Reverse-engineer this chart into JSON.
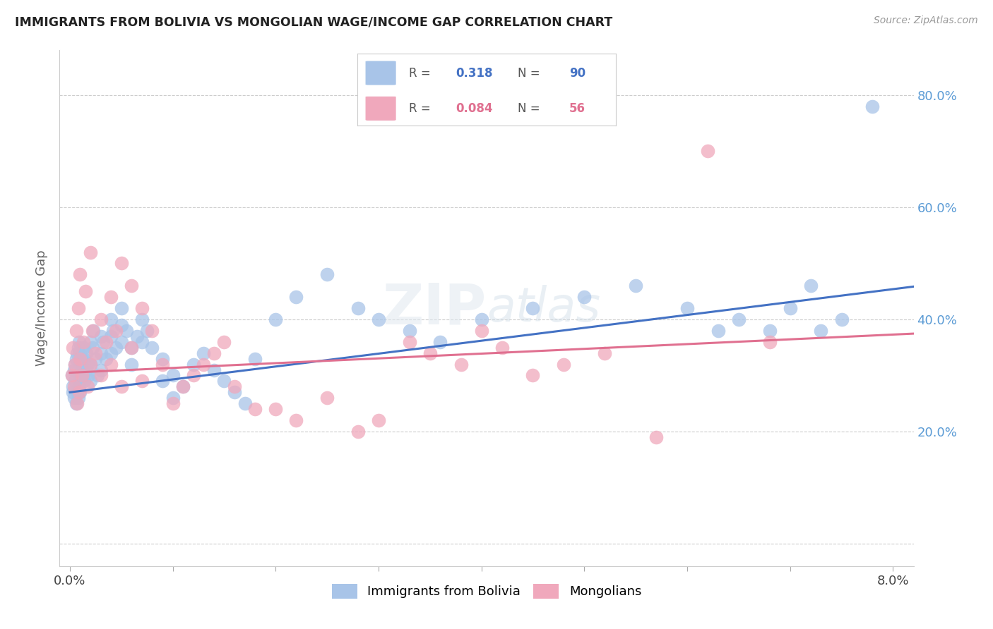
{
  "title": "IMMIGRANTS FROM BOLIVIA VS MONGOLIAN WAGE/INCOME GAP CORRELATION CHART",
  "source": "Source: ZipAtlas.com",
  "ylabel": "Wage/Income Gap",
  "xlim": [
    -0.001,
    0.082
  ],
  "ylim": [
    -0.04,
    0.88
  ],
  "legend1_label": "Immigrants from Bolivia",
  "legend2_label": "Mongolians",
  "r1": "0.318",
  "n1": "90",
  "r2": "0.084",
  "n2": "56",
  "color_blue": "#a8c4e8",
  "color_pink": "#f0a8bc",
  "color_blue_line": "#4472c4",
  "color_pink_line": "#e07090",
  "color_blue_dark": "#4472c4",
  "color_pink_dark": "#e07090",
  "color_ytick": "#5b9bd5",
  "watermark_zip": "ZIP",
  "watermark_atlas": "atlas",
  "bolivia_x": [
    0.0002,
    0.0003,
    0.0003,
    0.0004,
    0.0004,
    0.0005,
    0.0005,
    0.0006,
    0.0006,
    0.0007,
    0.0007,
    0.0008,
    0.0008,
    0.0009,
    0.0009,
    0.001,
    0.001,
    0.001,
    0.001,
    0.001,
    0.0012,
    0.0012,
    0.0013,
    0.0013,
    0.0014,
    0.0014,
    0.0015,
    0.0016,
    0.0017,
    0.0018,
    0.002,
    0.002,
    0.002,
    0.0022,
    0.0023,
    0.0025,
    0.0027,
    0.003,
    0.003,
    0.003,
    0.0032,
    0.0035,
    0.004,
    0.004,
    0.004,
    0.0042,
    0.0045,
    0.005,
    0.005,
    0.005,
    0.0055,
    0.006,
    0.006,
    0.0065,
    0.007,
    0.007,
    0.0075,
    0.008,
    0.009,
    0.009,
    0.01,
    0.01,
    0.011,
    0.012,
    0.013,
    0.014,
    0.015,
    0.016,
    0.017,
    0.018,
    0.02,
    0.022,
    0.025,
    0.028,
    0.03,
    0.033,
    0.036,
    0.04,
    0.045,
    0.05,
    0.055,
    0.06,
    0.063,
    0.065,
    0.068,
    0.07,
    0.072,
    0.073,
    0.075,
    0.078
  ],
  "bolivia_y": [
    0.3,
    0.28,
    0.27,
    0.31,
    0.26,
    0.32,
    0.29,
    0.33,
    0.25,
    0.34,
    0.27,
    0.35,
    0.26,
    0.36,
    0.28,
    0.3,
    0.32,
    0.27,
    0.34,
    0.29,
    0.31,
    0.33,
    0.3,
    0.35,
    0.29,
    0.33,
    0.31,
    0.34,
    0.32,
    0.3,
    0.36,
    0.32,
    0.29,
    0.35,
    0.38,
    0.33,
    0.3,
    0.37,
    0.34,
    0.31,
    0.36,
    0.33,
    0.4,
    0.37,
    0.34,
    0.38,
    0.35,
    0.42,
    0.39,
    0.36,
    0.38,
    0.35,
    0.32,
    0.37,
    0.4,
    0.36,
    0.38,
    0.35,
    0.29,
    0.33,
    0.26,
    0.3,
    0.28,
    0.32,
    0.34,
    0.31,
    0.29,
    0.27,
    0.25,
    0.33,
    0.4,
    0.44,
    0.48,
    0.42,
    0.4,
    0.38,
    0.36,
    0.4,
    0.42,
    0.44,
    0.46,
    0.42,
    0.38,
    0.4,
    0.38,
    0.42,
    0.46,
    0.38,
    0.4,
    0.78
  ],
  "mongolia_x": [
    0.0002,
    0.0003,
    0.0004,
    0.0005,
    0.0006,
    0.0007,
    0.0008,
    0.0009,
    0.001,
    0.001,
    0.0012,
    0.0013,
    0.0015,
    0.0017,
    0.002,
    0.002,
    0.0022,
    0.0025,
    0.003,
    0.003,
    0.0035,
    0.004,
    0.004,
    0.0045,
    0.005,
    0.005,
    0.006,
    0.006,
    0.007,
    0.007,
    0.008,
    0.009,
    0.01,
    0.011,
    0.012,
    0.013,
    0.014,
    0.015,
    0.016,
    0.018,
    0.02,
    0.022,
    0.025,
    0.028,
    0.03,
    0.033,
    0.035,
    0.038,
    0.04,
    0.042,
    0.045,
    0.048,
    0.052,
    0.057,
    0.062,
    0.068
  ],
  "mongolia_y": [
    0.3,
    0.35,
    0.28,
    0.32,
    0.38,
    0.25,
    0.42,
    0.27,
    0.33,
    0.48,
    0.3,
    0.36,
    0.45,
    0.28,
    0.52,
    0.32,
    0.38,
    0.34,
    0.4,
    0.3,
    0.36,
    0.44,
    0.32,
    0.38,
    0.5,
    0.28,
    0.46,
    0.35,
    0.42,
    0.29,
    0.38,
    0.32,
    0.25,
    0.28,
    0.3,
    0.32,
    0.34,
    0.36,
    0.28,
    0.24,
    0.24,
    0.22,
    0.26,
    0.2,
    0.22,
    0.36,
    0.34,
    0.32,
    0.38,
    0.35,
    0.3,
    0.32,
    0.34,
    0.19,
    0.7,
    0.36
  ],
  "yticks": [
    0.0,
    0.2,
    0.4,
    0.6,
    0.8
  ],
  "ytick_labels": [
    "",
    "20.0%",
    "40.0%",
    "60.0%",
    "80.0%"
  ],
  "xticks": [
    0.0,
    0.01,
    0.02,
    0.03,
    0.04,
    0.05,
    0.06,
    0.07,
    0.08
  ],
  "xtick_labels_show": {
    "0.0": "0.0%",
    "0.08": "8.0%"
  }
}
